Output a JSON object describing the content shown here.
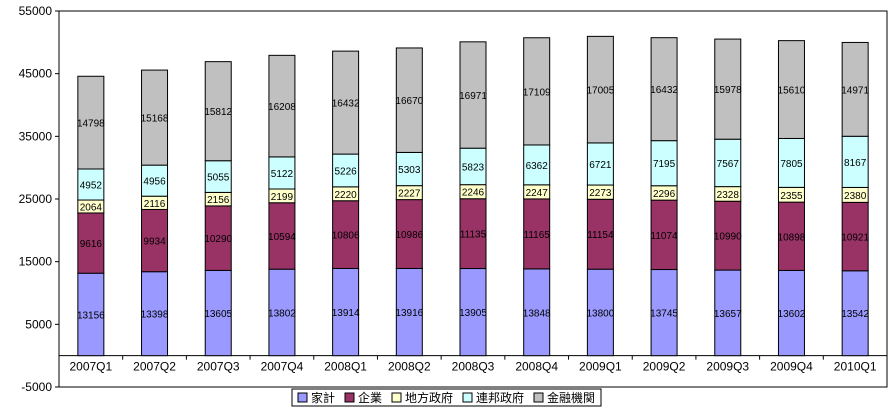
{
  "chart_data": {
    "type": "bar",
    "stacked": true,
    "title": "",
    "xlabel": "",
    "ylabel": "",
    "categories": [
      "2007Q1",
      "2007Q2",
      "2007Q3",
      "2007Q4",
      "2008Q1",
      "2008Q2",
      "2008Q3",
      "2008Q4",
      "2009Q1",
      "2009Q2",
      "2009Q3",
      "2009Q4",
      "2010Q1"
    ],
    "ylim": [
      -5000,
      55000
    ],
    "yticks": [
      -5000,
      5000,
      15000,
      25000,
      35000,
      45000,
      55000
    ],
    "grid": false,
    "legend_position": "bottom",
    "series": [
      {
        "name": "家計",
        "color": "#9999FF",
        "values": [
          13156,
          13398,
          13605,
          13802,
          13914,
          13916,
          13905,
          13848,
          13800,
          13745,
          13657,
          13602,
          13542
        ]
      },
      {
        "name": "企業",
        "color": "#993366",
        "values": [
          9616,
          9934,
          10290,
          10594,
          10806,
          10986,
          11135,
          11165,
          11154,
          11074,
          10990,
          10898,
          10921
        ]
      },
      {
        "name": "地方政府",
        "color": "#FFFFCC",
        "values": [
          2064,
          2116,
          2156,
          2199,
          2220,
          2227,
          2246,
          2247,
          2273,
          2296,
          2328,
          2355,
          2380
        ]
      },
      {
        "name": "連邦政府",
        "color": "#CCFFFF",
        "values": [
          4952,
          4956,
          5055,
          5122,
          5226,
          5303,
          5823,
          6362,
          6721,
          7195,
          7567,
          7805,
          8167
        ]
      },
      {
        "name": "金融機関",
        "color": "#C0C0C0",
        "values": [
          14798,
          15168,
          15812,
          16208,
          16432,
          16670,
          16971,
          17109,
          17005,
          16432,
          15978,
          15610,
          14971
        ]
      }
    ]
  }
}
